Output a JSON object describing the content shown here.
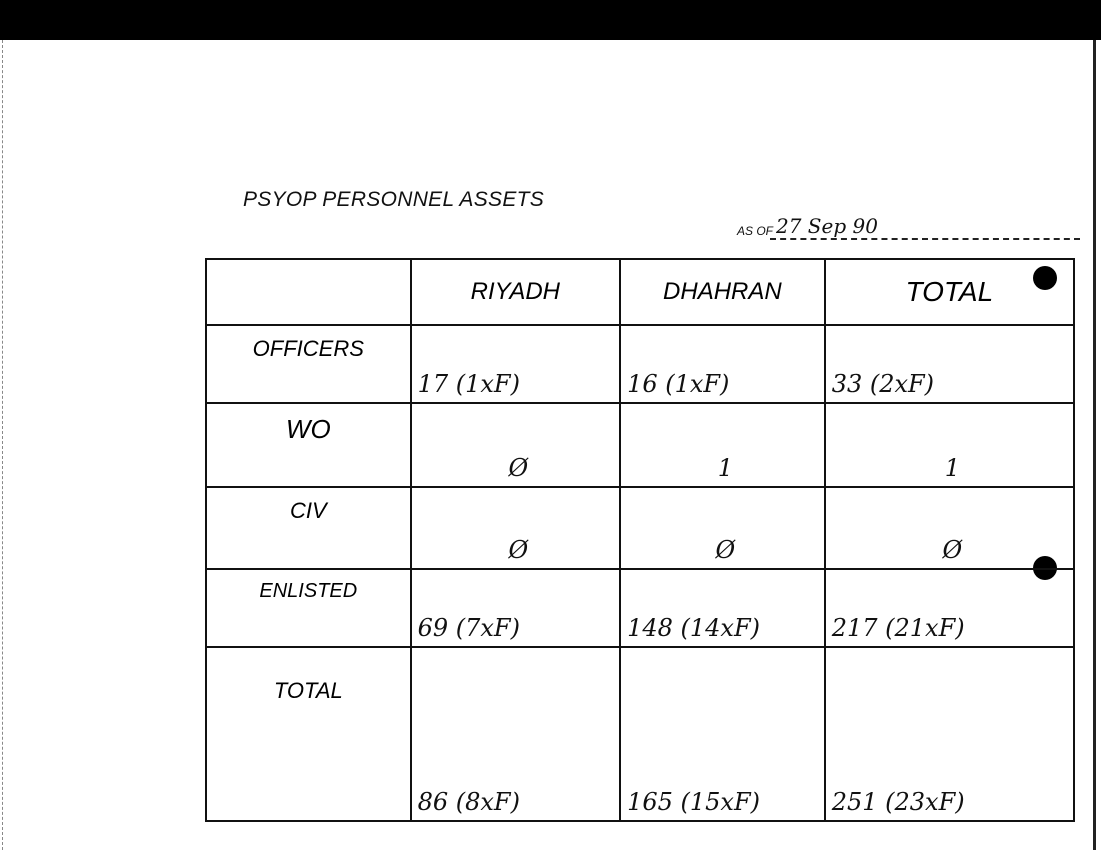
{
  "title": "PSYOP PERSONNEL ASSETS",
  "as_of_label": "AS OF",
  "as_of_date": "27 Sep 90",
  "table": {
    "headers": [
      "",
      "RIYADH",
      "DHAHRAN",
      "TOTAL"
    ],
    "rows": [
      {
        "label": "OFFICERS",
        "riyadh": "17 (1xF)",
        "dhahran": "16 (1xF)",
        "total": "33 (2xF)"
      },
      {
        "label": "WO",
        "riyadh": "Ø",
        "dhahran": "1",
        "total": "1"
      },
      {
        "label": "CIV",
        "riyadh": "Ø",
        "dhahran": "Ø",
        "total": "Ø"
      },
      {
        "label": "ENLISTED",
        "riyadh": "69 (7xF)",
        "dhahran": "148 (14xF)",
        "total": "217 (21xF)"
      },
      {
        "label": "TOTAL",
        "riyadh": "86 (8xF)",
        "dhahran": "165 (15xF)",
        "total": "251 (23xF)"
      }
    ]
  }
}
